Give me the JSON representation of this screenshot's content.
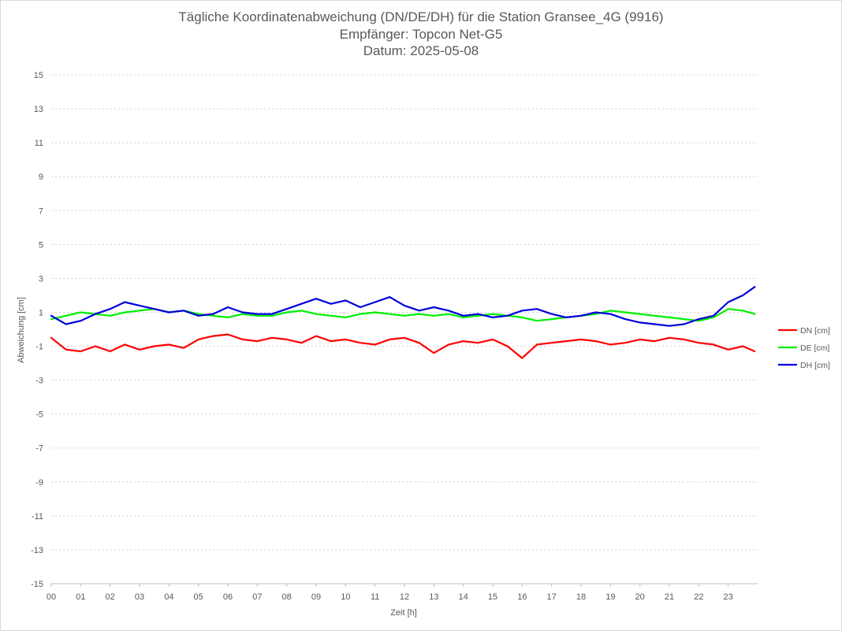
{
  "chart_data": {
    "type": "line",
    "title": "Tägliche Koordinatenabweichung (DN/DE/DH) für die Station Gransee_4G (9916)",
    "subtitle1": "Empfänger: Topcon Net-G5",
    "subtitle2": "Datum: 2025-05-08",
    "xlabel": "Zeit [h]",
    "ylabel": "Abweichung [cm]",
    "xlim": [
      0,
      24
    ],
    "ylim": [
      -15,
      15
    ],
    "x_ticks": [
      "00",
      "01",
      "02",
      "03",
      "04",
      "05",
      "06",
      "07",
      "08",
      "09",
      "10",
      "11",
      "12",
      "13",
      "14",
      "15",
      "16",
      "17",
      "18",
      "19",
      "20",
      "21",
      "22",
      "23"
    ],
    "y_ticks": [
      15,
      13,
      11,
      9,
      7,
      5,
      3,
      1,
      -1,
      -3,
      -5,
      -7,
      -9,
      -11,
      -13,
      -15
    ],
    "grid": true,
    "legend_position": "right",
    "series": [
      {
        "name": "DN [cm]",
        "color": "#ff0000",
        "x": [
          0,
          0.5,
          1,
          1.5,
          2,
          2.5,
          3,
          3.5,
          4,
          4.5,
          5,
          5.5,
          6,
          6.5,
          7,
          7.5,
          8,
          8.5,
          9,
          9.5,
          10,
          10.5,
          11,
          11.5,
          12,
          12.5,
          13,
          13.5,
          14,
          14.5,
          15,
          15.5,
          16,
          16.5,
          17,
          17.5,
          18,
          18.5,
          19,
          19.5,
          20,
          20.5,
          21,
          21.5,
          22,
          22.5,
          23,
          23.5,
          23.9
        ],
        "values": [
          -0.5,
          -1.2,
          -1.3,
          -1.0,
          -1.3,
          -0.9,
          -1.2,
          -1.0,
          -0.9,
          -1.1,
          -0.6,
          -0.4,
          -0.3,
          -0.6,
          -0.7,
          -0.5,
          -0.6,
          -0.8,
          -0.4,
          -0.7,
          -0.6,
          -0.8,
          -0.9,
          -0.6,
          -0.5,
          -0.8,
          -1.4,
          -0.9,
          -0.7,
          -0.8,
          -0.6,
          -1.0,
          -1.7,
          -0.9,
          -0.8,
          -0.7,
          -0.6,
          -0.7,
          -0.9,
          -0.8,
          -0.6,
          -0.7,
          -0.5,
          -0.6,
          -0.8,
          -0.9,
          -1.2,
          -1.0,
          -1.3
        ]
      },
      {
        "name": "DE [cm]",
        "color": "#00ee00",
        "x": [
          0,
          0.5,
          1,
          1.5,
          2,
          2.5,
          3,
          3.5,
          4,
          4.5,
          5,
          5.5,
          6,
          6.5,
          7,
          7.5,
          8,
          8.5,
          9,
          9.5,
          10,
          10.5,
          11,
          11.5,
          12,
          12.5,
          13,
          13.5,
          14,
          14.5,
          15,
          15.5,
          16,
          16.5,
          17,
          17.5,
          18,
          18.5,
          19,
          19.5,
          20,
          20.5,
          21,
          21.5,
          22,
          22.5,
          23,
          23.5,
          23.9
        ],
        "values": [
          0.6,
          0.8,
          1.0,
          0.9,
          0.8,
          1.0,
          1.1,
          1.2,
          1.0,
          1.1,
          0.9,
          0.8,
          0.7,
          0.9,
          0.8,
          0.8,
          1.0,
          1.1,
          0.9,
          0.8,
          0.7,
          0.9,
          1.0,
          0.9,
          0.8,
          0.9,
          0.8,
          0.9,
          0.7,
          0.8,
          0.9,
          0.8,
          0.7,
          0.5,
          0.6,
          0.7,
          0.8,
          0.9,
          1.1,
          1.0,
          0.9,
          0.8,
          0.7,
          0.6,
          0.5,
          0.7,
          1.2,
          1.1,
          0.9
        ]
      },
      {
        "name": "DH [cm]",
        "color": "#0000dd",
        "x": [
          0,
          0.5,
          1,
          1.5,
          2,
          2.5,
          3,
          3.5,
          4,
          4.5,
          5,
          5.5,
          6,
          6.5,
          7,
          7.5,
          8,
          8.5,
          9,
          9.5,
          10,
          10.5,
          11,
          11.5,
          12,
          12.5,
          13,
          13.5,
          14,
          14.5,
          15,
          15.5,
          16,
          16.5,
          17,
          17.5,
          18,
          18.5,
          19,
          19.5,
          20,
          20.5,
          21,
          21.5,
          22,
          22.5,
          23,
          23.5,
          23.9
        ],
        "values": [
          0.8,
          0.3,
          0.5,
          0.9,
          1.2,
          1.6,
          1.4,
          1.2,
          1.0,
          1.1,
          0.8,
          0.9,
          1.3,
          1.0,
          0.9,
          0.9,
          1.2,
          1.5,
          1.8,
          1.5,
          1.7,
          1.3,
          1.6,
          1.9,
          1.4,
          1.1,
          1.3,
          1.1,
          0.8,
          0.9,
          0.7,
          0.8,
          1.1,
          1.2,
          0.9,
          0.7,
          0.8,
          1.0,
          0.9,
          0.6,
          0.4,
          0.3,
          0.2,
          0.3,
          0.6,
          0.8,
          1.6,
          2.0,
          2.5
        ]
      }
    ]
  }
}
